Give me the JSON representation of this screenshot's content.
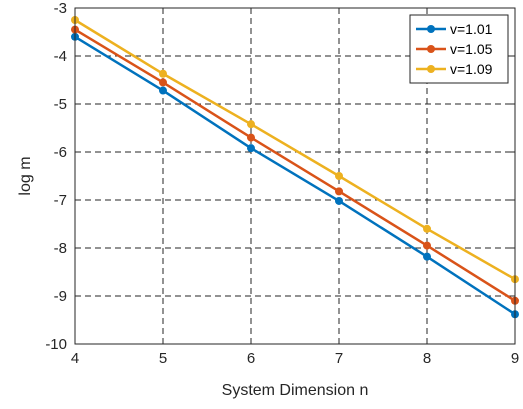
{
  "chart_data": {
    "type": "line",
    "title": "",
    "xlabel": "System Dimension n",
    "ylabel": "log m",
    "xlim": [
      4,
      9
    ],
    "ylim": [
      -10,
      -3
    ],
    "x_ticks": [
      "4",
      "5",
      "6",
      "7",
      "8",
      "9"
    ],
    "y_ticks": [
      "-3",
      "-4",
      "-5",
      "-6",
      "-7",
      "-8",
      "-9",
      "-10"
    ],
    "grid": true,
    "legend_position": "top-right",
    "x": [
      4,
      5,
      6,
      7,
      8,
      9
    ],
    "series": [
      {
        "name": "v=1.01",
        "color": "#0072BD",
        "values": [
          -3.6,
          -4.72,
          -5.92,
          -7.02,
          -8.18,
          -9.38
        ]
      },
      {
        "name": "v=1.05",
        "color": "#D95319",
        "values": [
          -3.45,
          -4.55,
          -5.7,
          -6.82,
          -7.95,
          -9.1
        ]
      },
      {
        "name": "v=1.09",
        "color": "#EDB120",
        "values": [
          -3.25,
          -4.37,
          -5.42,
          -6.5,
          -7.6,
          -8.65
        ]
      }
    ]
  }
}
